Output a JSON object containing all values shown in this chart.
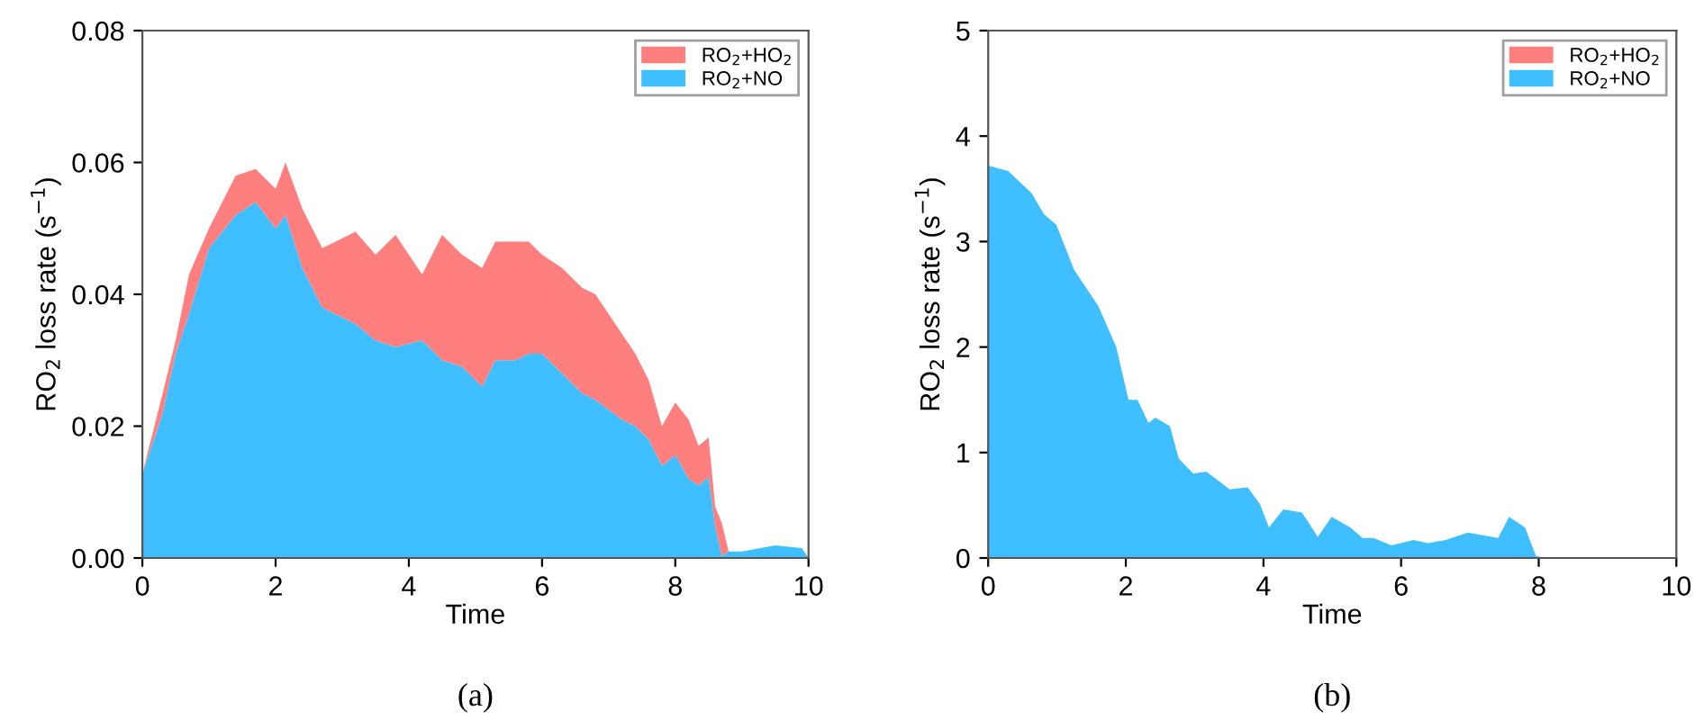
{
  "chart_data": [
    {
      "type": "area",
      "stacked": true,
      "xlabel": "Time",
      "legend": "top right",
      "grid": false,
      "x": [
        0,
        0.3,
        0.5,
        0.7,
        1.0,
        1.4,
        1.7,
        2.0,
        2.15,
        2.4,
        2.7,
        3.2,
        3.5,
        3.8,
        4.2,
        4.5,
        4.8,
        5.1,
        5.3,
        5.6,
        5.8,
        6.0,
        6.3,
        6.6,
        6.8,
        7.2,
        7.4,
        7.6,
        7.8,
        8.0,
        8.2,
        8.35,
        8.5,
        8.6,
        8.7,
        8.8,
        9.0,
        9.5,
        9.9,
        10
      ],
      "series": [
        {
          "name": "RO$_{2}$+NO",
          "color": "#3fbfff",
          "values": [
            0.0128,
            0.0218,
            0.031,
            0.037,
            0.047,
            0.052,
            0.054,
            0.05,
            0.052,
            0.044,
            0.038,
            0.0355,
            0.033,
            0.032,
            0.033,
            0.03,
            0.029,
            0.026,
            0.03,
            0.03,
            0.031,
            0.031,
            0.028,
            0.025,
            0.024,
            0.021,
            0.02,
            0.018,
            0.014,
            0.0156,
            0.012,
            0.011,
            0.0123,
            0.0047,
            0.0003,
            0.001,
            0.001,
            0.0019,
            0.0015,
            0
          ]
        },
        {
          "name": "RO$_{2}$+HO$_{2}$",
          "color": "#ff7f7f",
          "values": [
            0,
            0.003,
            0.002,
            0.006,
            0.003,
            0.006,
            0.005,
            0.006,
            0.008,
            0.009,
            0.009,
            0.014,
            0.013,
            0.017,
            0.01,
            0.019,
            0.017,
            0.018,
            0.018,
            0.018,
            0.017,
            0.015,
            0.016,
            0.016,
            0.016,
            0.013,
            0.011,
            0.009,
            0.006,
            0.008,
            0.009,
            0.006,
            0.006,
            0.003,
            0.005,
            0,
            0,
            0,
            0,
            0
          ]
        }
      ],
      "xlim": [
        0,
        10
      ],
      "xticks": [
        0,
        2,
        4,
        6,
        8,
        10
      ],
      "ylabel": "RO$_{2}$ loss rate (s$^{−1}$)",
      "ylim": [
        0,
        0.08
      ],
      "yticks": [
        {
          "value": 0,
          "label": "0.00"
        },
        0.02,
        0.04,
        0.06,
        0.08
      ],
      "annotations": [
        "(a)"
      ]
    },
    {
      "type": "area",
      "stacked": true,
      "xlabel": "Time",
      "legend": "top right",
      "grid": false,
      "x": [
        0,
        0.29,
        0.63,
        0.81,
        0.99,
        1.25,
        1.6,
        1.86,
        2.04,
        2.17,
        2.33,
        2.43,
        2.64,
        2.77,
        2.98,
        3.17,
        3.51,
        3.77,
        3.95,
        4.08,
        4.29,
        4.56,
        4.79,
        4.99,
        5.26,
        5.44,
        5.6,
        5.86,
        6.18,
        6.39,
        6.65,
        6.97,
        7.41,
        7.57,
        7.8,
        7.96,
        8.1,
        10
      ],
      "series": [
        {
          "name": "RO$_{2}$+NO",
          "color": "#3fbfff",
          "values": [
            3.72,
            3.67,
            3.46,
            3.26,
            3.16,
            2.73,
            2.39,
            2.0,
            1.5,
            1.5,
            1.28,
            1.33,
            1.25,
            0.94,
            0.8,
            0.82,
            0.65,
            0.67,
            0.51,
            0.29,
            0.46,
            0.43,
            0.2,
            0.39,
            0.29,
            0.19,
            0.19,
            0.12,
            0.17,
            0.14,
            0.17,
            0.24,
            0.19,
            0.39,
            0.29,
            0.02,
            0,
            0
          ]
        },
        {
          "name": "RO$_{2}$+HO$_{2}$",
          "color": "#ff7f7f",
          "values": [
            null,
            null,
            null,
            null,
            null,
            null,
            null,
            null,
            null,
            null,
            null,
            null,
            null,
            null,
            null,
            null,
            null,
            null,
            null,
            null,
            null,
            null,
            null,
            null,
            null,
            null,
            null,
            null,
            null,
            null,
            null,
            null,
            null,
            null,
            null,
            null,
            null,
            null
          ]
        }
      ],
      "xlim": [
        0,
        10
      ],
      "xticks": [
        0,
        2,
        4,
        6,
        8,
        10
      ],
      "ylabel": "RO$_{2}$ loss rate (s$^{−1}$)",
      "ylim": [
        0,
        5
      ],
      "yticks": [
        0,
        1,
        2,
        3,
        4,
        5
      ],
      "annotations": [
        "(b)"
      ]
    }
  ]
}
